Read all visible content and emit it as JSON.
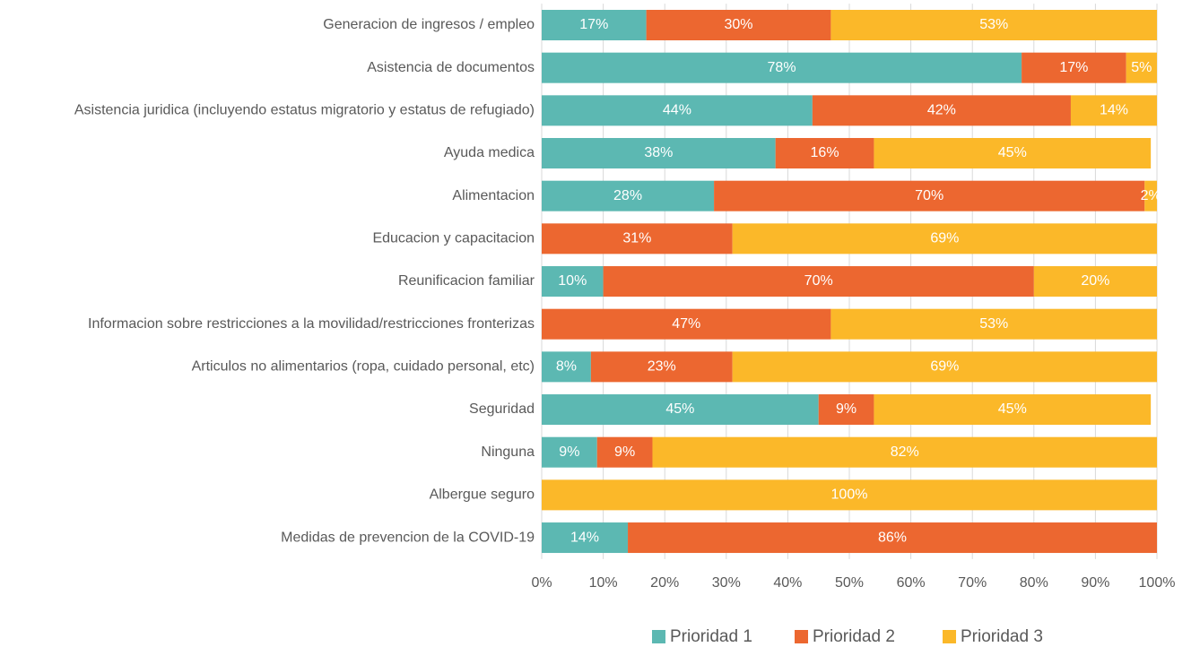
{
  "chart_data": {
    "type": "stacked-bar-horizontal",
    "categories": [
      "Generacion de ingresos / empleo",
      "Asistencia de documentos",
      "Asistencia juridica (incluyendo estatus migratorio y estatus de refugiado)",
      "Ayuda medica",
      "Alimentacion",
      "Educacion y capacitacion",
      "Reunificacion familiar",
      "Informacion sobre restricciones a la movilidad/restricciones fronterizas",
      "Articulos no alimentarios (ropa, cuidado personal, etc)",
      "Seguridad",
      "Ninguna",
      "Albergue seguro",
      "Medidas de prevencion de la COVID-19"
    ],
    "series": [
      {
        "name": "Prioridad 1",
        "color": "#5cb8b2",
        "values": [
          17,
          78,
          44,
          38,
          28,
          null,
          10,
          null,
          8,
          45,
          9,
          null,
          14
        ],
        "value_labels": [
          "17%",
          "78%",
          "44%",
          "38%",
          "28%",
          null,
          "10%",
          null,
          "8%",
          "45%",
          "9%",
          null,
          "14%"
        ]
      },
      {
        "name": "Prioridad 2",
        "color": "#ec6730",
        "values": [
          30,
          17,
          42,
          16,
          70,
          31,
          70,
          47,
          23,
          9,
          9,
          null,
          86
        ],
        "value_labels": [
          "30%",
          "17%",
          "42%",
          "16%",
          "70%",
          "31%",
          "70%",
          "47%",
          "23%",
          "9%",
          "9%",
          null,
          "86%"
        ]
      },
      {
        "name": "Prioridad 3",
        "color": "#fbb829",
        "values": [
          53,
          5,
          14,
          45,
          2,
          69,
          20,
          53,
          69,
          45,
          82,
          100,
          null
        ],
        "value_labels": [
          "53%",
          "5%",
          "14%",
          "45%",
          "2%",
          "69%",
          "20%",
          "53%",
          "69%",
          "45%",
          "82%",
          "100%",
          null
        ]
      }
    ],
    "xlim": [
      0,
      100
    ],
    "xticks": [
      {
        "value": 0,
        "label": "0%"
      },
      {
        "value": 10,
        "label": "10%"
      },
      {
        "value": 20,
        "label": "20%"
      },
      {
        "value": 30,
        "label": "30%"
      },
      {
        "value": 40,
        "label": "40%"
      },
      {
        "value": 50,
        "label": "50%"
      },
      {
        "value": 60,
        "label": "60%"
      },
      {
        "value": 70,
        "label": "70%"
      },
      {
        "value": 80,
        "label": "80%"
      },
      {
        "value": 90,
        "label": "90%"
      },
      {
        "value": 100,
        "label": "100%"
      }
    ],
    "grid": true,
    "legend": "bottom"
  }
}
